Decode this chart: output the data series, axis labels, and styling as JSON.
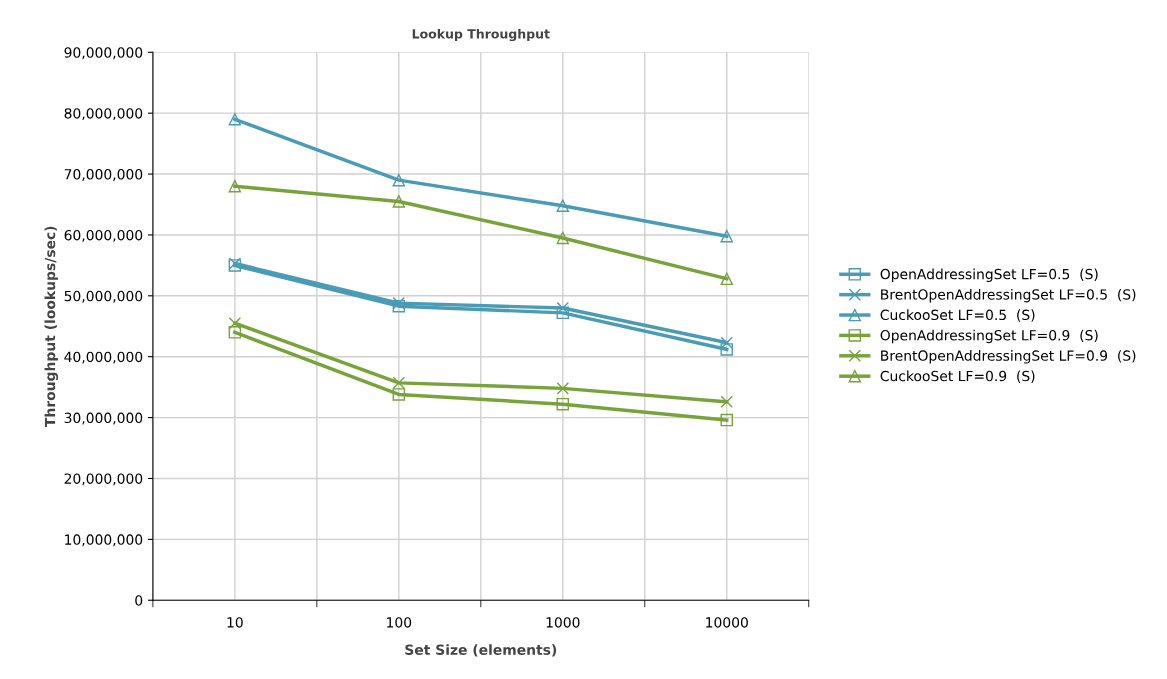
{
  "chart_data": {
    "type": "line",
    "title": "Lookup Throughput",
    "xlabel": "Set Size (elements)",
    "ylabel": "Throughput (lookups/sec)",
    "categories": [
      "10",
      "100",
      "1000",
      "10000"
    ],
    "series": [
      {
        "name": "OpenAddressingSet LF=0.5  (S)",
        "color": "#4a9bb5",
        "marker": "square",
        "values": [
          55000000,
          48300000,
          47200000,
          41200000
        ]
      },
      {
        "name": "BrentOpenAddressingSet LF=0.5  (S)",
        "color": "#4a9bb5",
        "marker": "cross",
        "values": [
          55300000,
          48800000,
          48000000,
          42300000
        ]
      },
      {
        "name": "CuckooSet LF=0.5  (S)",
        "color": "#4a9bb5",
        "marker": "triangle",
        "values": [
          79000000,
          69000000,
          64800000,
          59800000
        ]
      },
      {
        "name": "OpenAddressingSet LF=0.9  (S)",
        "color": "#77a33a",
        "marker": "square",
        "values": [
          44000000,
          33800000,
          32200000,
          29600000
        ]
      },
      {
        "name": "BrentOpenAddressingSet LF=0.9  (S)",
        "color": "#77a33a",
        "marker": "cross",
        "values": [
          45500000,
          35700000,
          34800000,
          32600000
        ]
      },
      {
        "name": "CuckooSet LF=0.9  (S)",
        "color": "#77a33a",
        "marker": "triangle",
        "values": [
          68000000,
          65500000,
          59500000,
          52800000
        ]
      }
    ],
    "ylim": [
      0,
      90000000
    ],
    "yticks": [
      {
        "value": 0,
        "label": "0"
      },
      {
        "value": 10000000,
        "label": "10,000,000"
      },
      {
        "value": 20000000,
        "label": "20,000,000"
      },
      {
        "value": 30000000,
        "label": "30,000,000"
      },
      {
        "value": 40000000,
        "label": "40,000,000"
      },
      {
        "value": 50000000,
        "label": "50,000,000"
      },
      {
        "value": 60000000,
        "label": "60,000,000"
      },
      {
        "value": 70000000,
        "label": "70,000,000"
      },
      {
        "value": 80000000,
        "label": "80,000,000"
      },
      {
        "value": 90000000,
        "label": "90,000,000"
      }
    ],
    "grid": true,
    "legend": "right",
    "line_style": "solid"
  }
}
